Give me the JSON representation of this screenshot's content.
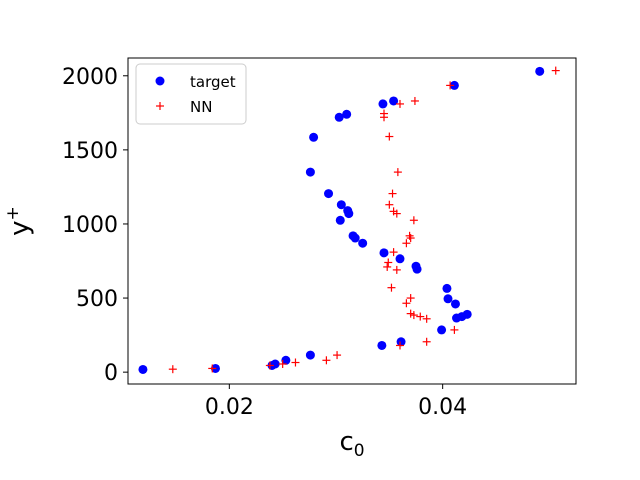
{
  "chart_data": {
    "type": "scatter",
    "title": "",
    "xlabel": "c",
    "xlabel_sub": "0",
    "ylabel": "y",
    "ylabel_sup": "+",
    "xlim": [
      0.0105,
      0.0525
    ],
    "ylim": [
      -80,
      2120
    ],
    "x_ticks": [
      0.02,
      0.04
    ],
    "x_tick_labels": [
      "0.02",
      "0.04"
    ],
    "y_ticks": [
      0,
      500,
      1000,
      1500,
      2000
    ],
    "y_tick_labels": [
      "0",
      "500",
      "1000",
      "1500",
      "2000"
    ],
    "grid": false,
    "legend_position": "top-left",
    "series": [
      {
        "name": "target",
        "marker": "circle",
        "color": "#0000ff",
        "points": [
          [
            0.0119,
            18
          ],
          [
            0.0187,
            25
          ],
          [
            0.024,
            45
          ],
          [
            0.0243,
            55
          ],
          [
            0.0253,
            80
          ],
          [
            0.0276,
            115
          ],
          [
            0.0343,
            180
          ],
          [
            0.0361,
            205
          ],
          [
            0.0399,
            285
          ],
          [
            0.0413,
            365
          ],
          [
            0.0418,
            375
          ],
          [
            0.0423,
            390
          ],
          [
            0.0412,
            460
          ],
          [
            0.0405,
            495
          ],
          [
            0.0404,
            565
          ],
          [
            0.0376,
            695
          ],
          [
            0.0375,
            715
          ],
          [
            0.036,
            765
          ],
          [
            0.0345,
            805
          ],
          [
            0.0325,
            870
          ],
          [
            0.0318,
            905
          ],
          [
            0.0316,
            920
          ],
          [
            0.0304,
            1025
          ],
          [
            0.0312,
            1070
          ],
          [
            0.0311,
            1090
          ],
          [
            0.0305,
            1130
          ],
          [
            0.0293,
            1205
          ],
          [
            0.0276,
            1350
          ],
          [
            0.0279,
            1585
          ],
          [
            0.0303,
            1720
          ],
          [
            0.031,
            1740
          ],
          [
            0.0344,
            1810
          ],
          [
            0.0354,
            1830
          ],
          [
            0.0411,
            1935
          ],
          [
            0.0491,
            2030
          ]
        ]
      },
      {
        "name": "NN",
        "marker": "plus",
        "color": "#ff0000",
        "points": [
          [
            0.0147,
            20
          ],
          [
            0.0184,
            25
          ],
          [
            0.0238,
            45
          ],
          [
            0.025,
            55
          ],
          [
            0.0262,
            65
          ],
          [
            0.0291,
            80
          ],
          [
            0.0301,
            115
          ],
          [
            0.036,
            180
          ],
          [
            0.0385,
            205
          ],
          [
            0.0411,
            285
          ],
          [
            0.0385,
            360
          ],
          [
            0.0379,
            375
          ],
          [
            0.0373,
            385
          ],
          [
            0.037,
            395
          ],
          [
            0.0366,
            465
          ],
          [
            0.037,
            500
          ],
          [
            0.0352,
            570
          ],
          [
            0.0357,
            690
          ],
          [
            0.0348,
            710
          ],
          [
            0.0349,
            740
          ],
          [
            0.0354,
            810
          ],
          [
            0.0366,
            870
          ],
          [
            0.037,
            905
          ],
          [
            0.0369,
            920
          ],
          [
            0.0373,
            1025
          ],
          [
            0.0357,
            1070
          ],
          [
            0.0354,
            1085
          ],
          [
            0.035,
            1130
          ],
          [
            0.0353,
            1205
          ],
          [
            0.0358,
            1350
          ],
          [
            0.035,
            1590
          ],
          [
            0.0345,
            1720
          ],
          [
            0.0345,
            1745
          ],
          [
            0.036,
            1810
          ],
          [
            0.0374,
            1830
          ],
          [
            0.0407,
            1935
          ],
          [
            0.0506,
            2035
          ]
        ]
      }
    ]
  }
}
